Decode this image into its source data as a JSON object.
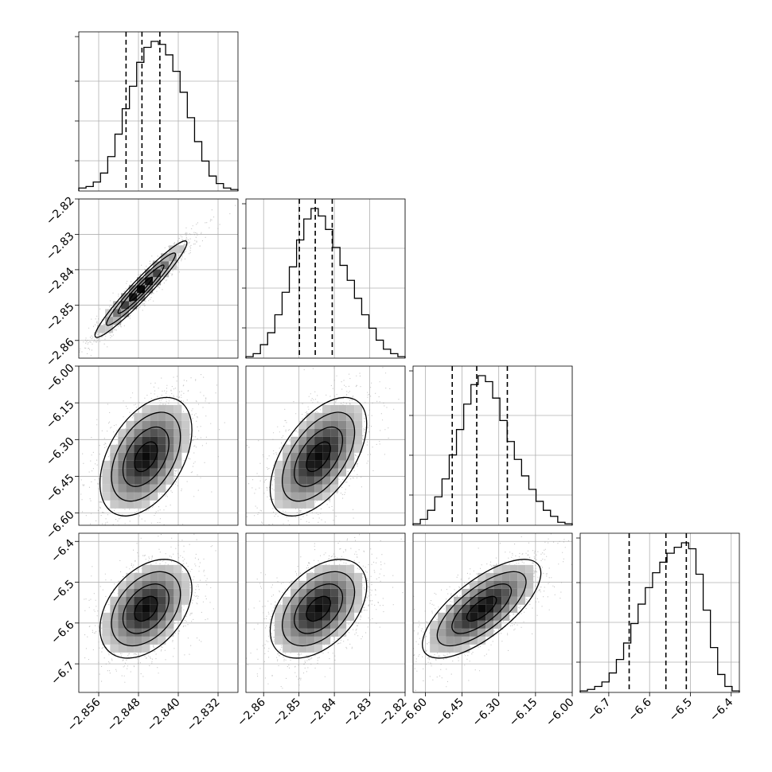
{
  "chart_data": {
    "type": "corner",
    "grid": true,
    "params": [
      {
        "index": 0,
        "range": [
          -2.86,
          -2.828
        ],
        "ticks": [
          -2.856,
          -2.848,
          -2.84,
          -2.832
        ],
        "tick_labels": [
          "−2.856",
          "−2.848",
          "−2.840",
          "−2.832"
        ],
        "quantiles": [
          -2.8505,
          -2.8473,
          -2.8437
        ],
        "hist": [
          0.02,
          0.03,
          0.06,
          0.12,
          0.23,
          0.38,
          0.55,
          0.7,
          0.86,
          0.96,
          1.0,
          0.98,
          0.91,
          0.8,
          0.66,
          0.49,
          0.33,
          0.2,
          0.1,
          0.05,
          0.02,
          0.01
        ]
      },
      {
        "index": 1,
        "range": [
          -2.865,
          -2.82
        ],
        "ticks": [
          -2.86,
          -2.85,
          -2.84,
          -2.83,
          -2.82
        ],
        "tick_labels": [
          "−2.86",
          "−2.85",
          "−2.84",
          "−2.83",
          "−2.82"
        ],
        "quantiles": [
          -2.8499,
          -2.8454,
          -2.8406
        ],
        "hist": [
          0.01,
          0.03,
          0.09,
          0.17,
          0.29,
          0.44,
          0.61,
          0.79,
          0.93,
          1.0,
          0.95,
          0.86,
          0.74,
          0.62,
          0.52,
          0.4,
          0.29,
          0.2,
          0.12,
          0.06,
          0.03,
          0.01
        ]
      },
      {
        "index": 2,
        "range": [
          -6.65,
          -6.0
        ],
        "ticks": [
          -6.6,
          -6.45,
          -6.3,
          -6.15,
          -6.0
        ],
        "tick_labels": [
          "−6.60",
          "−6.45",
          "−6.30",
          "−6.15",
          "−6.00"
        ],
        "quantiles": [
          -6.49,
          -6.39,
          -6.265
        ],
        "hist": [
          0.01,
          0.04,
          0.1,
          0.19,
          0.31,
          0.47,
          0.64,
          0.81,
          0.94,
          1.0,
          0.96,
          0.85,
          0.7,
          0.56,
          0.44,
          0.33,
          0.24,
          0.16,
          0.1,
          0.06,
          0.02,
          0.01
        ]
      },
      {
        "index": 3,
        "range": [
          -6.77,
          -6.38
        ],
        "ticks": [
          -6.7,
          -6.6,
          -6.5,
          -6.4
        ],
        "tick_labels": [
          "−6.7",
          "−6.6",
          "−6.5",
          "−6.4"
        ],
        "quantiles": [
          -6.65,
          -6.56,
          -6.51
        ],
        "hist": [
          0.01,
          0.02,
          0.04,
          0.07,
          0.13,
          0.22,
          0.33,
          0.46,
          0.59,
          0.7,
          0.8,
          0.87,
          0.93,
          0.97,
          1.0,
          0.96,
          0.79,
          0.55,
          0.3,
          0.12,
          0.04,
          0.01
        ]
      }
    ],
    "y_tick_labels_rows": [
      {
        "row": 1,
        "ticks": [
          -2.86,
          -2.85,
          -2.84,
          -2.83,
          -2.82
        ],
        "labels": [
          "−2.86",
          "−2.85",
          "−2.84",
          "−2.83",
          "−2.82"
        ]
      },
      {
        "row": 2,
        "ticks": [
          -6.6,
          -6.45,
          -6.3,
          -6.15,
          -6.0
        ],
        "labels": [
          "−6.60",
          "−6.45",
          "−6.30",
          "−6.15",
          "−6.00"
        ]
      },
      {
        "row": 3,
        "ticks": [
          -6.7,
          -6.6,
          -6.5,
          -6.4
        ],
        "labels": [
          "−6.7",
          "−6.6",
          "−6.5",
          "−6.4"
        ]
      }
    ],
    "pairs": [
      {
        "x": 0,
        "y": 1,
        "mean": [
          -2.8475,
          -2.8455
        ],
        "sd": [
          0.0042,
          0.0062
        ],
        "corr": 0.96
      },
      {
        "x": 0,
        "y": 2,
        "mean": [
          -2.8465,
          -6.37
        ],
        "sd": [
          0.0042,
          0.11
        ],
        "corr": 0.45
      },
      {
        "x": 1,
        "y": 2,
        "mean": [
          -2.8445,
          -6.37
        ],
        "sd": [
          0.0062,
          0.11
        ],
        "corr": 0.55
      },
      {
        "x": 0,
        "y": 3,
        "mean": [
          -2.8465,
          -6.565
        ],
        "sd": [
          0.0042,
          0.055
        ],
        "corr": 0.4
      },
      {
        "x": 1,
        "y": 3,
        "mean": [
          -2.8445,
          -6.565
        ],
        "sd": [
          0.0062,
          0.055
        ],
        "corr": 0.45
      },
      {
        "x": 2,
        "y": 3,
        "mean": [
          -6.37,
          -6.565
        ],
        "sd": [
          0.11,
          0.055
        ],
        "corr": 0.72
      }
    ],
    "colors": {
      "line": "#000000",
      "grid": "#b0b0b0",
      "sample": "#9a9a9a"
    }
  }
}
